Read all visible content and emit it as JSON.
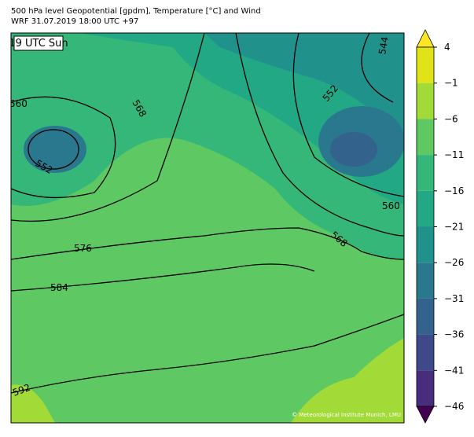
{
  "header": {
    "title": "500 hPa level Geopotential [gpdm], Temperature [°C] and Wind",
    "subtitle": "WRF 31.07.2019 18:00 UTC +97"
  },
  "map": {
    "time_label": "19 UTC Sun",
    "credit": "© Meteorological Institute Munich, LMU",
    "contour_labels": [
      "560",
      "568",
      "552",
      "576",
      "584",
      "592",
      "544",
      "552",
      "560",
      "568"
    ]
  },
  "colorbar": {
    "ticks": [
      4,
      {
        "value": -1,
        "label": "−1"
      },
      {
        "value": -6,
        "label": "−6"
      },
      {
        "value": -11,
        "label": "−11"
      },
      {
        "value": -16,
        "label": "−16"
      },
      {
        "value": -21,
        "label": "−21"
      },
      {
        "value": -26,
        "label": "−26"
      },
      {
        "value": -31,
        "label": "−31"
      },
      {
        "value": -36,
        "label": "−36"
      },
      {
        "value": -41,
        "label": "−41"
      },
      {
        "value": -46,
        "label": "−46"
      }
    ],
    "colors": [
      "#dfe318",
      "#a2da37",
      "#5ec962",
      "#35b779",
      "#22a884",
      "#21918c",
      "#2a788e",
      "#33638d",
      "#3e4989",
      "#472d7b"
    ],
    "over": "#fde725",
    "under": "#440154"
  }
}
